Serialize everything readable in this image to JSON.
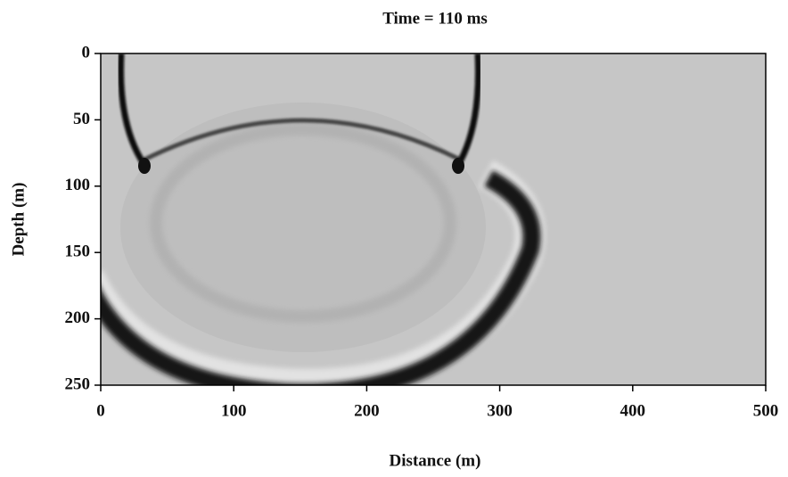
{
  "chart_data": {
    "type": "image",
    "title": "Time = 110 ms",
    "x_label": "Distance (m)",
    "y_label": "Depth (m)",
    "xlim": [
      0,
      500
    ],
    "xticks": [
      0,
      100,
      200,
      300,
      400,
      500
    ],
    "ylim": [
      250,
      0
    ],
    "yticks": [
      0,
      50,
      100,
      150,
      200,
      250
    ]
  }
}
